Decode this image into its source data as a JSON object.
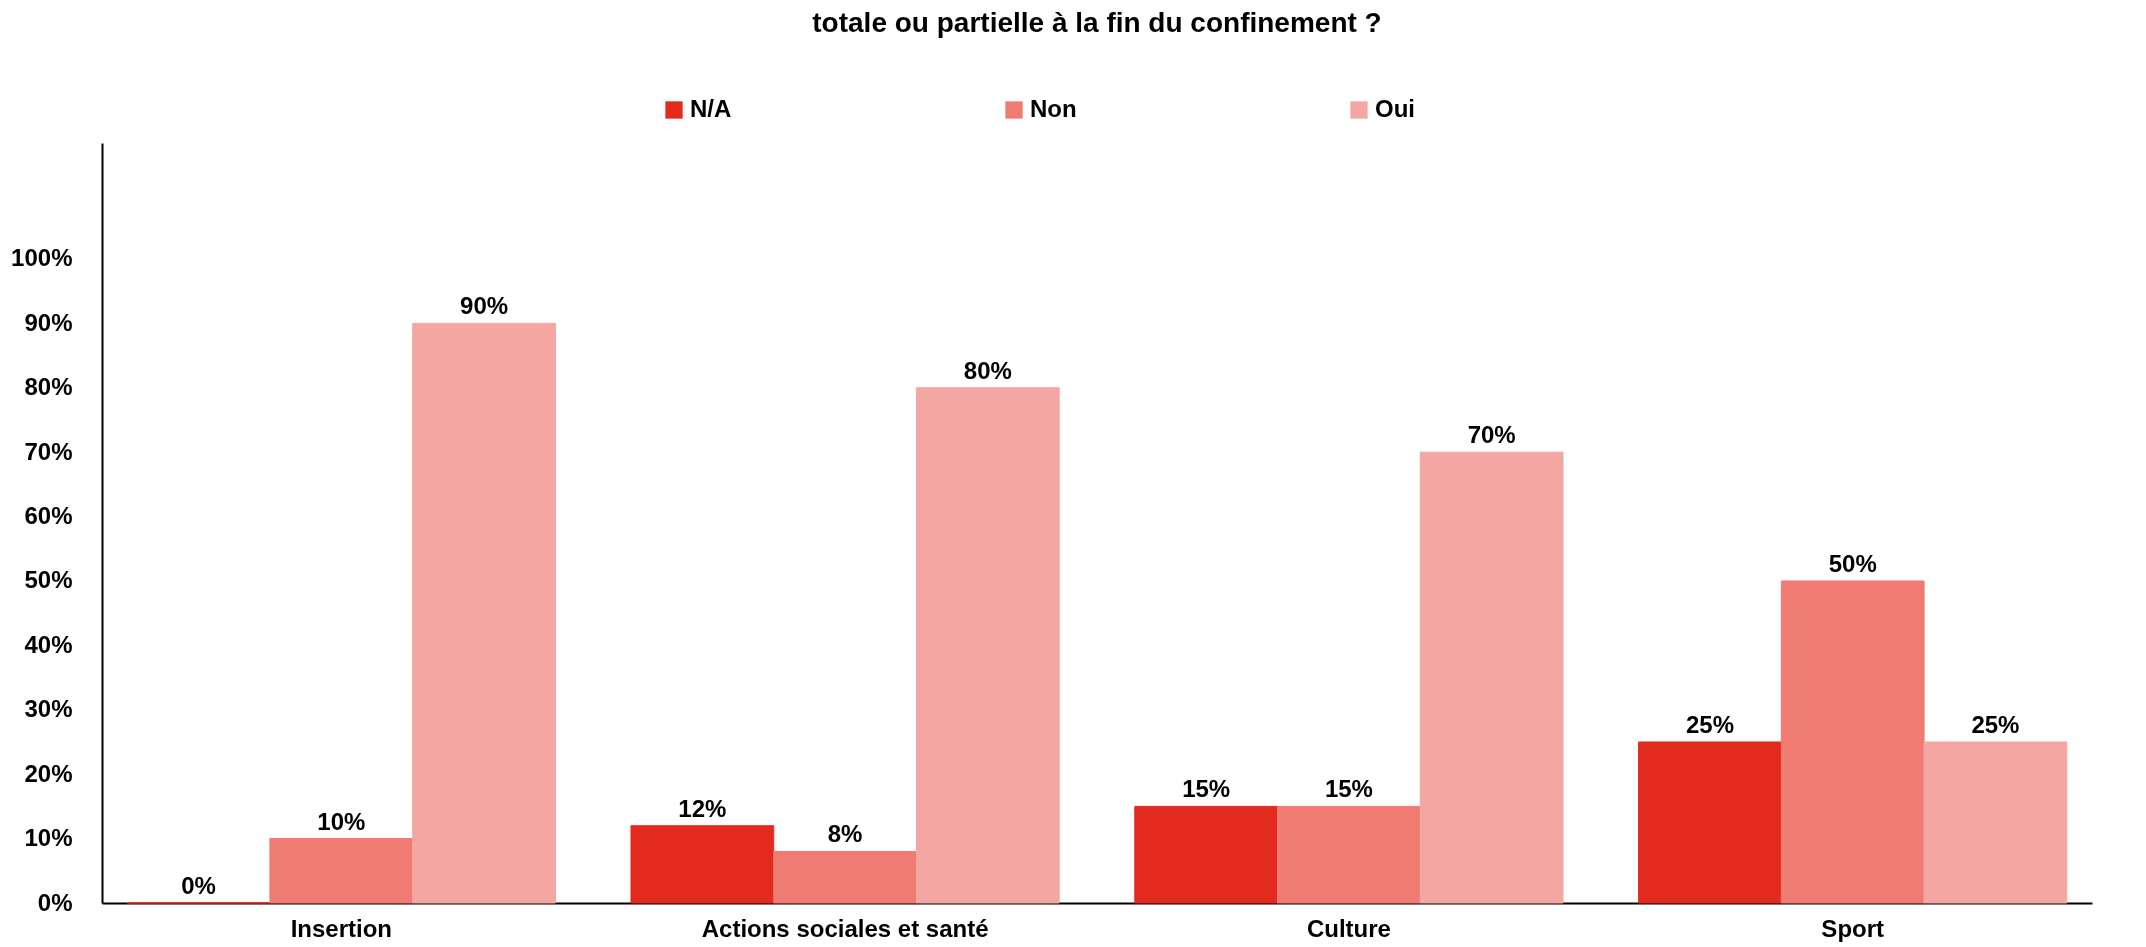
{
  "chart_data": {
    "type": "bar",
    "title": "totale ou partielle à la fin du confinement ?",
    "categories": [
      "Insertion",
      "Actions sociales et santé",
      "Culture",
      "Sport"
    ],
    "series": [
      {
        "name": "N/A",
        "color": "#e32a1e",
        "values": [
          0,
          12,
          15,
          25
        ],
        "value_labels": [
          "0%",
          "12%",
          "15%",
          "25%"
        ]
      },
      {
        "name": "Non",
        "color": "#ef7b72",
        "values": [
          10,
          8,
          15,
          50
        ],
        "value_labels": [
          "10%",
          "8%",
          "15%",
          "50%"
        ]
      },
      {
        "name": "Oui",
        "color": "#f4a7a2",
        "values": [
          90,
          80,
          70,
          25
        ],
        "value_labels": [
          "90%",
          "80%",
          "70%",
          "25%"
        ]
      }
    ],
    "ylim": [
      0,
      118
    ],
    "yticks": [
      {
        "value": 0,
        "label": "0%"
      },
      {
        "value": 10,
        "label": "10%"
      },
      {
        "value": 20,
        "label": "20%"
      },
      {
        "value": 30,
        "label": "30%"
      },
      {
        "value": 40,
        "label": "40%"
      },
      {
        "value": 50,
        "label": "50%"
      },
      {
        "value": 60,
        "label": "60%"
      },
      {
        "value": 70,
        "label": "70%"
      },
      {
        "value": 80,
        "label": "80%"
      },
      {
        "value": 90,
        "label": "90%"
      },
      {
        "value": 100,
        "label": "100%"
      }
    ],
    "grid": false,
    "legend": "top"
  }
}
